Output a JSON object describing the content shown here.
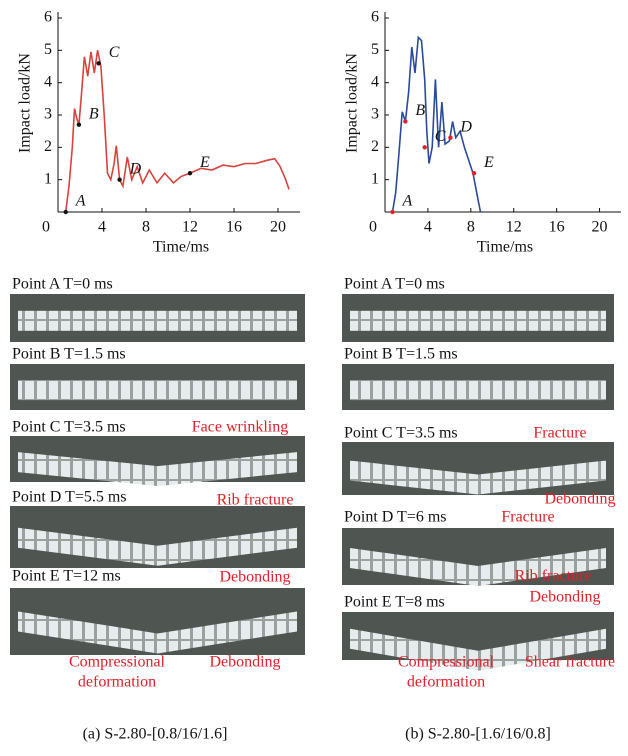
{
  "chart_data": [
    {
      "type": "line",
      "x_label": "Time/ms",
      "y_label": "Impact load/kN",
      "xlim": [
        0,
        22
      ],
      "ylim": [
        0,
        6
      ],
      "xticks": [
        0,
        4,
        8,
        12,
        16,
        20
      ],
      "yticks": [
        1,
        2,
        3,
        4,
        5,
        6
      ],
      "series": [
        {
          "color": "#d9433f",
          "x": [
            0.7,
            1.0,
            1.3,
            1.5,
            1.7,
            1.9,
            2.1,
            2.4,
            2.7,
            3.0,
            3.3,
            3.6,
            3.9,
            4.2,
            4.5,
            4.8,
            5.1,
            5.3,
            5.6,
            5.9,
            6.3,
            6.7,
            7.2,
            7.7,
            8.3,
            9,
            9.7,
            10.5,
            11.2,
            12,
            13,
            14,
            15,
            16,
            17,
            18,
            19,
            19.7,
            20.2,
            20.7,
            21
          ],
          "values": [
            0,
            0.8,
            2,
            3.2,
            2.9,
            2.7,
            3.5,
            4.8,
            4.2,
            4.95,
            4.3,
            5.0,
            4.5,
            3,
            1.2,
            1.0,
            1.5,
            2.05,
            1.0,
            0.8,
            1.7,
            1.0,
            1.4,
            0.9,
            1.3,
            0.9,
            1.2,
            0.9,
            1.1,
            1.2,
            1.35,
            1.3,
            1.45,
            1.4,
            1.5,
            1.5,
            1.6,
            1.65,
            1.4,
            1.0,
            0.7
          ]
        }
      ],
      "point_color": "#111111",
      "points": [
        {
          "label": "A",
          "x": 0.7,
          "y": 0
        },
        {
          "label": "B",
          "x": 1.9,
          "y": 2.7
        },
        {
          "label": "C",
          "x": 3.7,
          "y": 4.6
        },
        {
          "label": "D",
          "x": 5.6,
          "y": 1.0
        },
        {
          "label": "E",
          "x": 12,
          "y": 1.2
        }
      ]
    },
    {
      "type": "line",
      "x_label": "Time/ms",
      "y_label": "Impact load/kN",
      "xlim": [
        0,
        22
      ],
      "ylim": [
        0,
        6
      ],
      "xticks": [
        0,
        4,
        8,
        12,
        16,
        20
      ],
      "yticks": [
        1,
        2,
        3,
        4,
        5,
        6
      ],
      "series": [
        {
          "color": "#2a4a9a",
          "x": [
            0.7,
            1,
            1.3,
            1.6,
            1.9,
            2.2,
            2.5,
            2.8,
            3.1,
            3.4,
            3.7,
            3.9,
            4.1,
            4.4,
            4.7,
            5.0,
            5.3,
            5.6,
            6.0,
            6.3,
            6.6,
            7.0,
            7.4,
            7.8,
            8.2,
            8.6,
            8.9
          ],
          "values": [
            0,
            0.6,
            1.8,
            3.1,
            2.8,
            3.7,
            5.1,
            4.3,
            5.4,
            5.3,
            4.1,
            2.5,
            1.5,
            2.0,
            4.1,
            2.0,
            3.4,
            2.1,
            2.2,
            2.8,
            2.3,
            2.5,
            2.0,
            1.6,
            1.2,
            0.5,
            0
          ]
        }
      ],
      "point_color": "#e0202a",
      "points": [
        {
          "label": "A",
          "x": 0.7,
          "y": 0
        },
        {
          "label": "B",
          "x": 1.9,
          "y": 2.8
        },
        {
          "label": "C",
          "x": 3.7,
          "y": 2.0
        },
        {
          "label": "D",
          "x": 6.1,
          "y": 2.3
        },
        {
          "label": "E",
          "x": 8.3,
          "y": 1.2
        }
      ]
    }
  ],
  "panels": [
    {
      "frames": [
        "Point A  T=0 ms",
        "Point B  T=1.5 ms",
        "Point C  T=3.5 ms",
        "Point D  T=5.5 ms",
        "Point E  T=12 ms"
      ],
      "annotations": [
        "Face wrinkling",
        "Rib fracture",
        "Debonding",
        "Compressional",
        "deformation",
        "Debonding"
      ],
      "caption": "(a) S-2.80-[0.8/16/1.6]"
    },
    {
      "frames": [
        "Point A  T=0 ms",
        "Point B  T=1.5 ms",
        "Point C  T=3.5 ms",
        "Point D  T=6 ms",
        "Point E  T=8 ms"
      ],
      "annotations": [
        "Fracture",
        "Debonding",
        "Fracture",
        "Rib fracture",
        "Debonding",
        "Compressional",
        "deformation",
        "Shear fracture"
      ],
      "caption": "(b) S-2.80-[1.6/16/0.8]"
    }
  ]
}
